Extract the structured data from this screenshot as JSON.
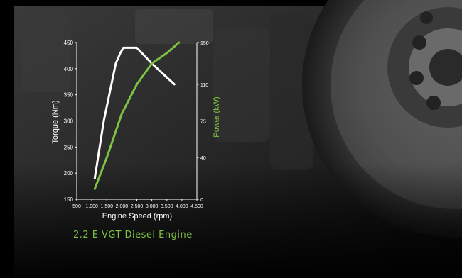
{
  "caption": "2.2 E-VGT Diesel Engine",
  "colors": {
    "torque": "#ffffff",
    "power": "#7dc242",
    "caption": "#7dc242",
    "axis": "#ffffff"
  },
  "chart_data": {
    "type": "line",
    "title": "",
    "xlabel": "Engine Speed (rpm)",
    "ylabel": "Torque (Nm)",
    "y2label": "Power (kW)",
    "xlim": [
      500,
      4500
    ],
    "ylim": [
      150,
      450
    ],
    "y2lim": [
      0,
      150
    ],
    "x_ticks": [
      "500",
      "1,000",
      "1,500",
      "2,000",
      "2,500",
      "3,000",
      "3,500",
      "4,000",
      "4,500"
    ],
    "x_tick_values": [
      500,
      1000,
      1500,
      2000,
      2500,
      3000,
      3500,
      4000,
      4500
    ],
    "y_ticks": [
      "150",
      "200",
      "250",
      "300",
      "350",
      "400",
      "450"
    ],
    "y_tick_values": [
      150,
      200,
      250,
      300,
      350,
      400,
      450
    ],
    "y2_ticks": [
      "0",
      "40",
      "75",
      "110",
      "150"
    ],
    "y2_tick_values": [
      0,
      40,
      75,
      110,
      150
    ],
    "series": [
      {
        "name": "Torque",
        "axis": "left",
        "x": [
          1100,
          1400,
          1800,
          1950,
          2050,
          2500,
          3000,
          3750
        ],
        "y": [
          190,
          300,
          410,
          430,
          440,
          440,
          410,
          370
        ]
      },
      {
        "name": "Power",
        "axis": "right",
        "x": [
          1100,
          1500,
          2000,
          2500,
          3000,
          3500,
          3900
        ],
        "y": [
          10,
          40,
          82,
          110,
          130,
          140,
          150
        ]
      }
    ]
  }
}
